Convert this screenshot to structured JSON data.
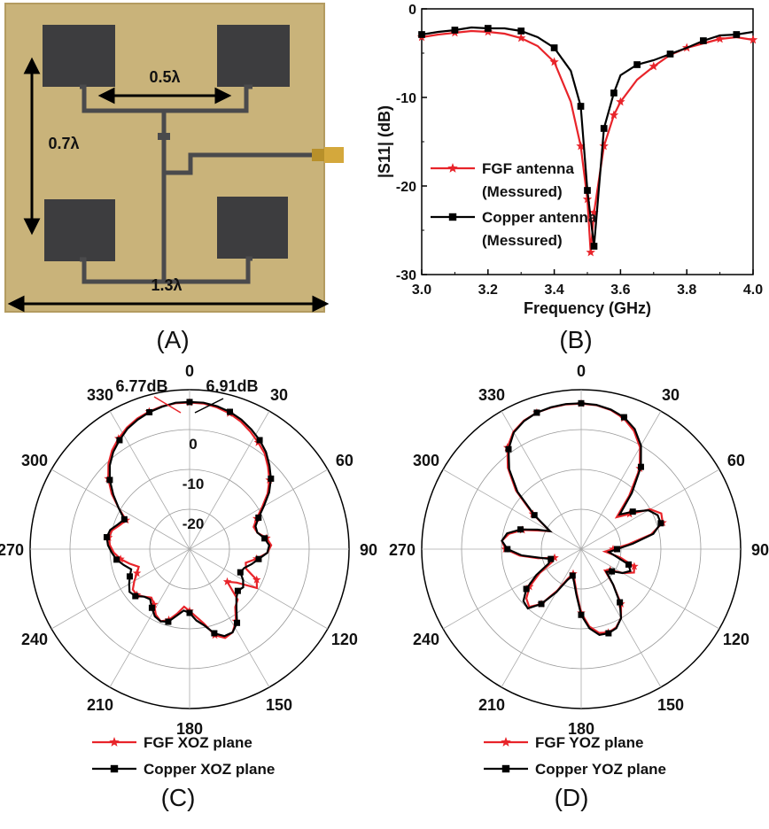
{
  "panels": {
    "a": {
      "label": "(A)",
      "dim_05": "0.5λ",
      "dim_07": "0.7λ",
      "dim_13": "1.3λ"
    },
    "b": {
      "label": "(B)"
    },
    "c": {
      "label": "(C)"
    },
    "d": {
      "label": "(D)"
    }
  },
  "chart_data": [
    {
      "type": "line",
      "panel": "B",
      "xlabel": "Frequency (GHz)",
      "ylabel": "|S11| (dB)",
      "xlim": [
        3.0,
        4.0
      ],
      "ylim": [
        -30,
        0
      ],
      "xticks": [
        "3.0",
        "3.2",
        "3.4",
        "3.6",
        "3.8",
        "4.0"
      ],
      "yticks": [
        "0",
        "-10",
        "-20",
        "-30"
      ],
      "legend_position": "left-middle",
      "series": [
        {
          "name_line1": "FGF antenna",
          "name_line2": "(Messured)",
          "color": "#e8242a",
          "marker": "star",
          "x": [
            3.0,
            3.05,
            3.1,
            3.15,
            3.2,
            3.25,
            3.3,
            3.35,
            3.4,
            3.45,
            3.48,
            3.5,
            3.51,
            3.52,
            3.55,
            3.58,
            3.6,
            3.65,
            3.7,
            3.75,
            3.8,
            3.85,
            3.9,
            3.95,
            4.0
          ],
          "y": [
            -3.2,
            -2.9,
            -2.7,
            -2.5,
            -2.6,
            -2.8,
            -3.3,
            -4.2,
            -6.0,
            -10.5,
            -15.5,
            -21.5,
            -27.5,
            -23.0,
            -15.5,
            -12.0,
            -10.5,
            -8.0,
            -6.5,
            -5.2,
            -4.4,
            -3.9,
            -3.4,
            -3.2,
            -3.5
          ]
        },
        {
          "name_line1": "Copper antenna",
          "name_line2": "(Messured)",
          "color": "#000000",
          "marker": "square",
          "x": [
            3.0,
            3.05,
            3.1,
            3.15,
            3.2,
            3.25,
            3.3,
            3.35,
            3.4,
            3.45,
            3.48,
            3.5,
            3.52,
            3.55,
            3.58,
            3.6,
            3.65,
            3.7,
            3.75,
            3.8,
            3.85,
            3.9,
            3.95,
            4.0
          ],
          "y": [
            -2.9,
            -2.6,
            -2.4,
            -2.1,
            -2.2,
            -2.2,
            -2.5,
            -3.2,
            -4.4,
            -7.0,
            -11.0,
            -20.5,
            -26.8,
            -13.5,
            -9.5,
            -7.5,
            -6.3,
            -5.8,
            -5.1,
            -4.4,
            -3.6,
            -3.0,
            -2.9,
            -2.6
          ]
        }
      ]
    },
    {
      "type": "polar",
      "panel": "C",
      "angle_labels": [
        "0",
        "30",
        "60",
        "90",
        "120",
        "150",
        "180",
        "210",
        "240",
        "270",
        "300",
        "330"
      ],
      "radial_labels": [
        "0",
        "-10",
        "-20"
      ],
      "rlim": [
        -30,
        10
      ],
      "peak_labels": [
        "6.77dB",
        "6.91dB"
      ],
      "series": [
        {
          "name": "FGF XOZ plane",
          "color": "#e8242a",
          "marker": "star",
          "r": [
            6.77,
            6.7,
            6.2,
            5.5,
            4.5,
            3.2,
            1.8,
            0.5,
            -1.5,
            -3.5,
            -6.0,
            -9.0,
            -11.5,
            -13.0,
            -12.5,
            -10.5,
            -9.5,
            -10.5,
            -13.0,
            -15.5,
            -15.0,
            -11.5,
            -10.5,
            -15.5,
            -17.5,
            -12.5,
            -11.5,
            -8.5,
            -6.5,
            -6.0,
            -7.5,
            -11.0,
            -13.0,
            -14.5,
            -15.5,
            -13.5,
            -11.5,
            -10.5,
            -11.5,
            -13.5,
            -14.5,
            -13.5,
            -12.5,
            -12.5,
            -14.0,
            -15.5,
            -16.5,
            -14.5,
            -12.5,
            -11.0,
            -10.0,
            -9.5,
            -10.0,
            -11.5,
            -12.5,
            -9.5,
            -6.0,
            -3.0,
            -0.5,
            1.5,
            3.0,
            4.3,
            5.3,
            6.0,
            6.5,
            6.77
          ]
        },
        {
          "name": "Copper XOZ plane",
          "color": "#000000",
          "marker": "square",
          "r": [
            6.91,
            6.9,
            6.5,
            5.9,
            5.0,
            3.8,
            2.5,
            1.0,
            -1.0,
            -3.0,
            -5.5,
            -8.5,
            -11.0,
            -12.5,
            -12.5,
            -11.0,
            -10.0,
            -10.5,
            -12.5,
            -14.0,
            -15.5,
            -16.0,
            -14.5,
            -13.5,
            -14.0,
            -13.0,
            -11.0,
            -8.0,
            -6.5,
            -6.5,
            -8.0,
            -10.5,
            -12.0,
            -14.0,
            -14.5,
            -13.0,
            -11.0,
            -10.5,
            -11.0,
            -12.5,
            -14.0,
            -13.5,
            -12.0,
            -11.5,
            -12.5,
            -13.5,
            -14.5,
            -13.0,
            -11.5,
            -10.5,
            -9.5,
            -9.0,
            -9.5,
            -11.0,
            -12.0,
            -9.5,
            -6.5,
            -3.5,
            -1.0,
            1.0,
            2.5,
            4.0,
            5.0,
            5.8,
            6.4,
            6.91
          ]
        }
      ]
    },
    {
      "type": "polar",
      "panel": "D",
      "angle_labels": [
        "0",
        "30",
        "60",
        "90",
        "120",
        "150",
        "180",
        "210",
        "240",
        "270",
        "300",
        "330"
      ],
      "radial_labels": [],
      "rlim": [
        -30,
        10
      ],
      "series": [
        {
          "name": "FGF YOZ plane",
          "color": "#e8242a",
          "marker": "star",
          "r": [
            6.5,
            6.3,
            5.7,
            4.5,
            2.5,
            -0.5,
            -5.0,
            -12.0,
            -18.0,
            -15.0,
            -10.0,
            -8.0,
            -8.5,
            -12.0,
            -18.0,
            -22.0,
            -24.0,
            -20.0,
            -16.0,
            -15.5,
            -18.0,
            -21.0,
            -22.0,
            -18.0,
            -13.0,
            -10.0,
            -8.5,
            -8.0,
            -8.5,
            -10.5,
            -14.0,
            -19.0,
            -22.0,
            -23.5,
            -22.0,
            -18.0,
            -13.0,
            -10.5,
            -11.5,
            -14.0,
            -18.0,
            -22.0,
            -23.0,
            -19.0,
            -14.5,
            -11.0,
            -10.0,
            -11.5,
            -14.5,
            -18.5,
            -21.0,
            -15.0,
            -8.0,
            -2.5,
            1.5,
            4.0,
            5.3,
            6.0,
            6.3,
            6.5
          ]
        },
        {
          "name": "Copper YOZ plane",
          "color": "#000000",
          "marker": "square",
          "r": [
            6.6,
            6.4,
            5.8,
            4.8,
            3.0,
            0.0,
            -4.5,
            -11.0,
            -17.0,
            -14.0,
            -10.5,
            -9.0,
            -9.0,
            -11.5,
            -17.0,
            -21.0,
            -23.0,
            -21.0,
            -17.5,
            -16.5,
            -18.0,
            -20.5,
            -21.5,
            -18.0,
            -13.5,
            -10.0,
            -8.3,
            -7.8,
            -8.0,
            -10.0,
            -13.5,
            -18.5,
            -21.5,
            -23.0,
            -21.5,
            -17.5,
            -13.0,
            -10.0,
            -10.5,
            -13.0,
            -17.0,
            -21.0,
            -22.0,
            -19.5,
            -15.0,
            -11.5,
            -10.0,
            -11.0,
            -14.0,
            -18.0,
            -21.0,
            -15.5,
            -8.5,
            -3.0,
            1.0,
            3.8,
            5.2,
            6.0,
            6.4,
            6.6
          ]
        }
      ]
    }
  ]
}
